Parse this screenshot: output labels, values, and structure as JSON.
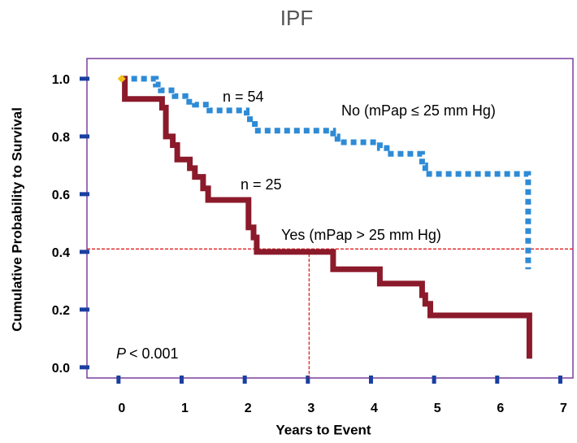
{
  "chart_data": {
    "type": "line",
    "title": "IPF",
    "x_label": "Years to Event",
    "y_label": "Cumulative Probability to Survival",
    "xlim": [
      -0.5,
      7.2
    ],
    "ylim": [
      -0.037,
      1.07
    ],
    "xticks": [
      0,
      1,
      2,
      3,
      4,
      5,
      6,
      7
    ],
    "yticks": [
      {
        "value": 0,
        "label": "0.0"
      },
      {
        "value": 0.2,
        "label": "0.2"
      },
      {
        "value": 0.4,
        "label": "0.4"
      },
      {
        "value": 0.6,
        "label": "0.6"
      },
      {
        "value": 0.8,
        "label": "0.8"
      },
      {
        "value": 1,
        "label": "1.0"
      }
    ],
    "series": [
      {
        "name": "No (mPap ≤ 25 mm Hg)",
        "count_label": "n = 54",
        "color": "#2e8bd6",
        "dashed": true,
        "x": [
          0.05,
          0.59,
          0.59,
          0.67,
          0.67,
          0.89,
          0.89,
          1.06,
          1.06,
          1.21,
          1.21,
          1.44,
          1.44,
          2.03,
          2.03,
          2.16,
          2.16,
          3.4,
          3.4,
          3.47,
          3.47,
          4.14,
          4.14,
          4.25,
          4.25,
          4.81,
          4.81,
          4.86,
          4.86,
          6.49,
          6.49
        ],
        "values": [
          1.0,
          1.0,
          0.98,
          0.98,
          0.96,
          0.96,
          0.94,
          0.94,
          0.92,
          0.92,
          0.91,
          0.91,
          0.89,
          0.89,
          0.86,
          0.86,
          0.82,
          0.82,
          0.8,
          0.8,
          0.78,
          0.78,
          0.76,
          0.76,
          0.74,
          0.74,
          0.7,
          0.7,
          0.67,
          0.67,
          0.34
        ]
      },
      {
        "name": "Yes (mPap > 25 mm Hg)",
        "count_label": "n = 25",
        "color": "#8b1a2b",
        "dashed": false,
        "x": [
          0.05,
          0.1,
          0.1,
          0.69,
          0.69,
          0.75,
          0.75,
          0.86,
          0.86,
          0.93,
          0.93,
          1.13,
          1.13,
          1.21,
          1.21,
          1.34,
          1.34,
          1.42,
          1.42,
          2.06,
          2.06,
          2.14,
          2.14,
          2.19,
          2.19,
          3.4,
          3.4,
          4.14,
          4.14,
          4.81,
          4.81,
          4.86,
          4.86,
          4.94,
          4.94,
          6.51,
          6.51
        ],
        "values": [
          1.0,
          1.0,
          0.93,
          0.93,
          0.9,
          0.9,
          0.8,
          0.8,
          0.77,
          0.77,
          0.72,
          0.72,
          0.69,
          0.69,
          0.66,
          0.66,
          0.62,
          0.62,
          0.58,
          0.58,
          0.485,
          0.485,
          0.45,
          0.45,
          0.4,
          0.4,
          0.34,
          0.34,
          0.29,
          0.29,
          0.25,
          0.25,
          0.22,
          0.22,
          0.18,
          0.18,
          0.03
        ]
      }
    ],
    "reference_lines": {
      "y": 0.41,
      "x": 3.02,
      "color": "#e02020"
    },
    "p_value": {
      "symbol": "P",
      "text": "< 0.001"
    }
  }
}
